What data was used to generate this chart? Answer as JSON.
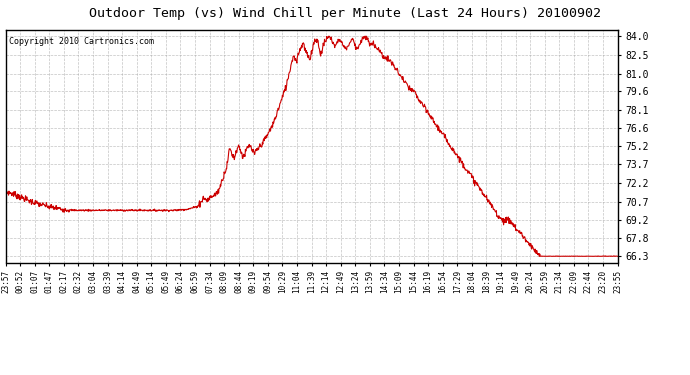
{
  "title": "Outdoor Temp (vs) Wind Chill per Minute (Last 24 Hours) 20100902",
  "copyright": "Copyright 2010 Cartronics.com",
  "line_color": "#cc0000",
  "background_color": "#ffffff",
  "plot_bg_color": "#ffffff",
  "grid_color": "#aaaaaa",
  "yticks": [
    66.3,
    67.8,
    69.2,
    70.7,
    72.2,
    73.7,
    75.2,
    76.6,
    78.1,
    79.6,
    81.0,
    82.5,
    84.0
  ],
  "ymin": 65.8,
  "ymax": 84.5,
  "xtick_labels": [
    "23:57",
    "00:52",
    "01:07",
    "01:47",
    "02:17",
    "02:32",
    "03:04",
    "03:39",
    "04:14",
    "04:49",
    "05:14",
    "05:49",
    "06:24",
    "06:59",
    "07:34",
    "08:09",
    "08:44",
    "09:19",
    "09:54",
    "10:29",
    "11:04",
    "11:39",
    "12:14",
    "12:49",
    "13:24",
    "13:59",
    "14:34",
    "15:09",
    "15:44",
    "16:19",
    "16:54",
    "17:29",
    "18:04",
    "18:39",
    "19:14",
    "19:49",
    "20:24",
    "20:59",
    "21:34",
    "22:09",
    "22:44",
    "23:20",
    "23:55"
  ],
  "keypoints": [
    [
      0,
      71.5
    ],
    [
      20,
      71.3
    ],
    [
      40,
      71.0
    ],
    [
      60,
      70.7
    ],
    [
      80,
      70.5
    ],
    [
      100,
      70.3
    ],
    [
      130,
      70.1
    ],
    [
      160,
      70.0
    ],
    [
      200,
      70.0
    ],
    [
      250,
      70.0
    ],
    [
      280,
      70.0
    ],
    [
      310,
      70.0
    ],
    [
      340,
      70.0
    ],
    [
      370,
      70.0
    ],
    [
      400,
      70.0
    ],
    [
      430,
      70.1
    ],
    [
      450,
      70.3
    ],
    [
      460,
      70.7
    ],
    [
      465,
      71.0
    ],
    [
      470,
      70.9
    ],
    [
      475,
      70.8
    ],
    [
      480,
      71.0
    ],
    [
      490,
      71.2
    ],
    [
      500,
      71.5
    ],
    [
      510,
      72.5
    ],
    [
      520,
      73.5
    ],
    [
      527,
      75.0
    ],
    [
      533,
      74.5
    ],
    [
      538,
      74.2
    ],
    [
      543,
      74.8
    ],
    [
      548,
      75.2
    ],
    [
      553,
      74.8
    ],
    [
      558,
      74.3
    ],
    [
      563,
      74.5
    ],
    [
      568,
      75.0
    ],
    [
      575,
      75.2
    ],
    [
      580,
      74.8
    ],
    [
      585,
      74.5
    ],
    [
      590,
      74.8
    ],
    [
      600,
      75.2
    ],
    [
      615,
      76.0
    ],
    [
      630,
      77.0
    ],
    [
      645,
      78.5
    ],
    [
      660,
      80.0
    ],
    [
      670,
      81.5
    ],
    [
      677,
      82.5
    ],
    [
      683,
      82.0
    ],
    [
      688,
      82.5
    ],
    [
      693,
      83.0
    ],
    [
      700,
      83.5
    ],
    [
      705,
      82.8
    ],
    [
      710,
      82.5
    ],
    [
      715,
      82.0
    ],
    [
      720,
      82.8
    ],
    [
      725,
      83.5
    ],
    [
      730,
      83.8
    ],
    [
      735,
      83.5
    ],
    [
      740,
      82.5
    ],
    [
      745,
      83.0
    ],
    [
      750,
      83.5
    ],
    [
      755,
      83.8
    ],
    [
      760,
      84.0
    ],
    [
      765,
      83.8
    ],
    [
      770,
      83.5
    ],
    [
      775,
      83.2
    ],
    [
      780,
      83.5
    ],
    [
      785,
      83.8
    ],
    [
      790,
      83.5
    ],
    [
      795,
      83.2
    ],
    [
      800,
      83.0
    ],
    [
      805,
      83.2
    ],
    [
      810,
      83.5
    ],
    [
      815,
      83.8
    ],
    [
      820,
      83.5
    ],
    [
      825,
      83.0
    ],
    [
      830,
      83.2
    ],
    [
      835,
      83.5
    ],
    [
      840,
      83.8
    ],
    [
      845,
      84.0
    ],
    [
      850,
      83.8
    ],
    [
      855,
      83.5
    ],
    [
      860,
      83.2
    ],
    [
      865,
      83.5
    ],
    [
      870,
      83.2
    ],
    [
      875,
      83.0
    ],
    [
      880,
      82.8
    ],
    [
      885,
      82.5
    ],
    [
      895,
      82.2
    ],
    [
      905,
      82.0
    ],
    [
      915,
      81.5
    ],
    [
      925,
      81.0
    ],
    [
      935,
      80.5
    ],
    [
      945,
      80.0
    ],
    [
      955,
      79.6
    ],
    [
      960,
      79.6
    ],
    [
      965,
      79.3
    ],
    [
      970,
      79.0
    ],
    [
      980,
      78.5
    ],
    [
      990,
      78.0
    ],
    [
      1000,
      77.5
    ],
    [
      1010,
      77.0
    ],
    [
      1020,
      76.5
    ],
    [
      1030,
      76.0
    ],
    [
      1040,
      75.5
    ],
    [
      1050,
      75.0
    ],
    [
      1060,
      74.5
    ],
    [
      1070,
      74.0
    ],
    [
      1080,
      73.5
    ],
    [
      1090,
      73.0
    ],
    [
      1100,
      72.5
    ],
    [
      1110,
      72.0
    ],
    [
      1120,
      71.5
    ],
    [
      1130,
      71.0
    ],
    [
      1140,
      70.5
    ],
    [
      1150,
      70.0
    ],
    [
      1160,
      69.5
    ],
    [
      1170,
      69.2
    ],
    [
      1180,
      69.2
    ],
    [
      1185,
      69.2
    ],
    [
      1190,
      69.0
    ],
    [
      1195,
      68.8
    ],
    [
      1200,
      68.5
    ],
    [
      1210,
      68.2
    ],
    [
      1215,
      68.0
    ],
    [
      1220,
      67.8
    ],
    [
      1225,
      67.5
    ],
    [
      1230,
      67.3
    ],
    [
      1235,
      67.1
    ],
    [
      1240,
      66.9
    ],
    [
      1245,
      66.7
    ],
    [
      1250,
      66.5
    ],
    [
      1255,
      66.4
    ],
    [
      1260,
      66.3
    ],
    [
      1270,
      66.3
    ],
    [
      1280,
      66.3
    ],
    [
      1290,
      66.3
    ],
    [
      1300,
      66.3
    ],
    [
      1310,
      66.3
    ],
    [
      1320,
      66.3
    ],
    [
      1330,
      66.3
    ],
    [
      1340,
      66.3
    ],
    [
      1350,
      66.3
    ],
    [
      1360,
      66.3
    ],
    [
      1370,
      66.3
    ],
    [
      1380,
      66.3
    ],
    [
      1390,
      66.3
    ],
    [
      1400,
      66.3
    ],
    [
      1410,
      66.3
    ],
    [
      1420,
      66.3
    ],
    [
      1430,
      66.3
    ],
    [
      1439,
      66.3
    ]
  ]
}
